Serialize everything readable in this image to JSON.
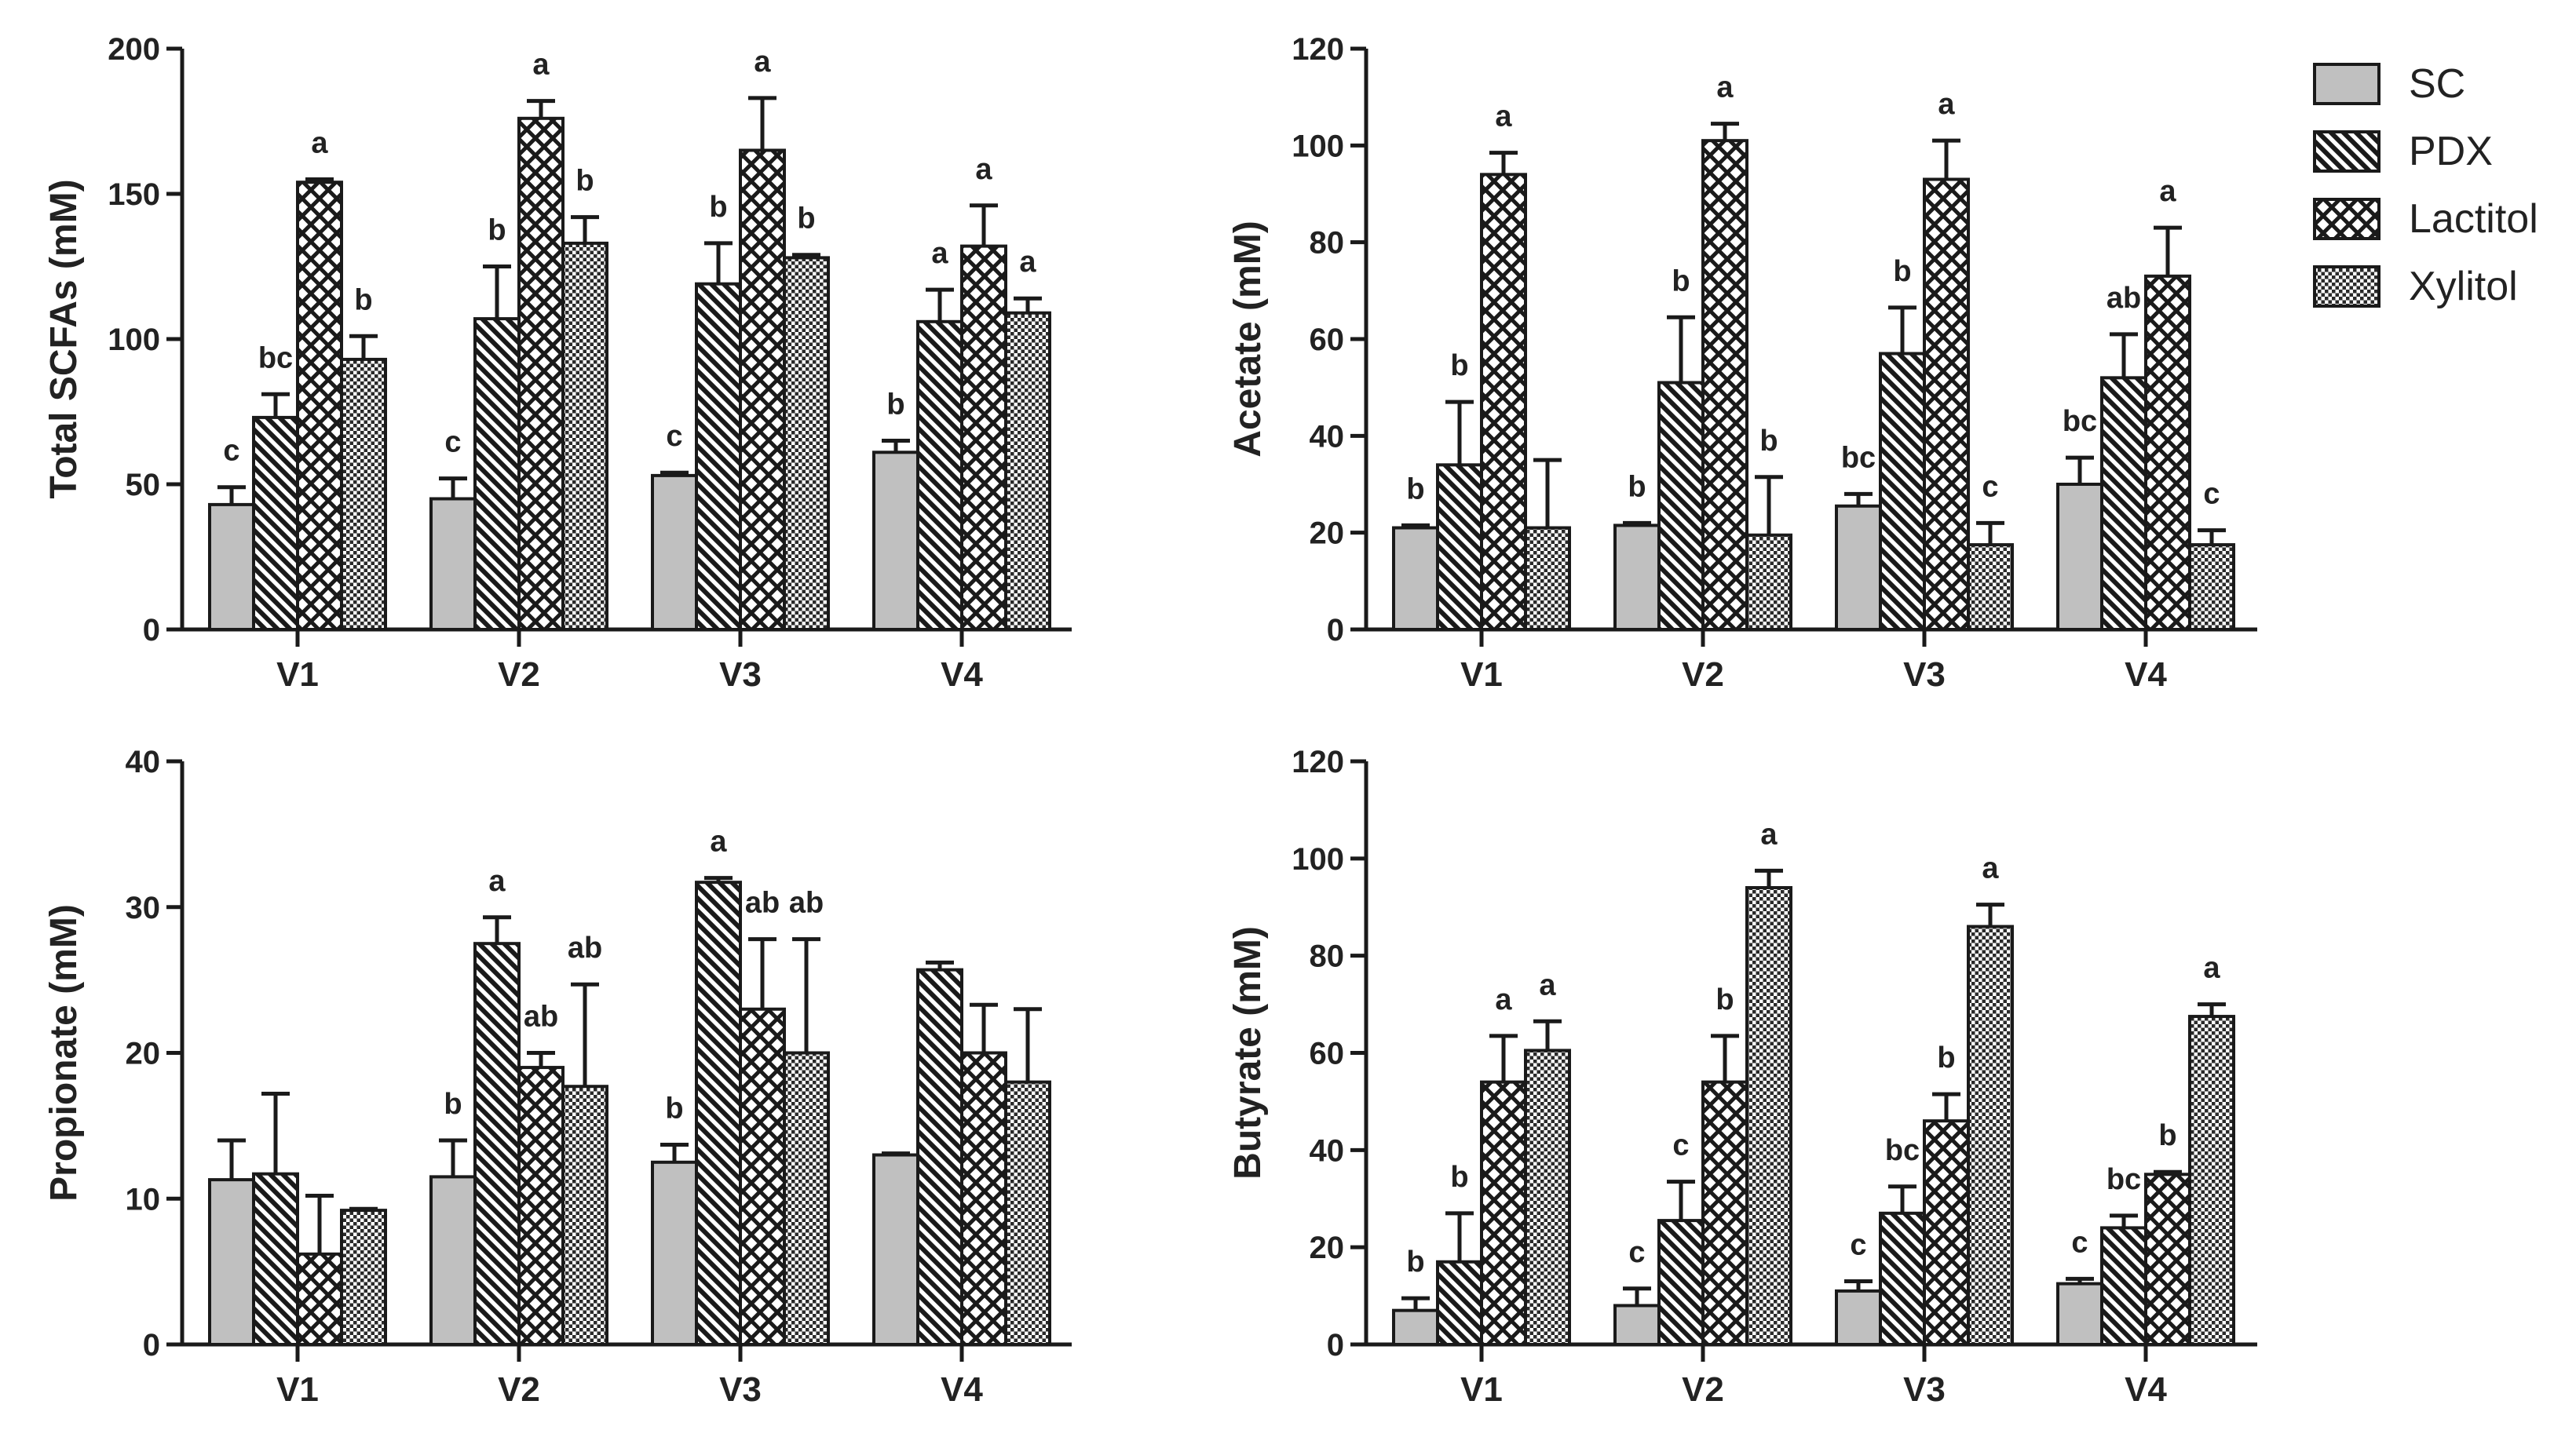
{
  "legend": {
    "position": "top-right",
    "items": [
      {
        "name": "SC",
        "fill": "solid"
      },
      {
        "name": "PDX",
        "fill": "diagonal"
      },
      {
        "name": "Lactitol",
        "fill": "crosshatch"
      },
      {
        "name": "Xylitol",
        "fill": "dots"
      }
    ]
  },
  "colors": {
    "sc_fill": "#c0c0c0",
    "stroke": "#1a1a1a"
  },
  "chart_data": [
    {
      "type": "bar",
      "ylabel": "Total SCFAs (mM)",
      "ylim": [
        0,
        200
      ],
      "yticks": [
        0,
        50,
        100,
        150,
        200
      ],
      "categories": [
        "V1",
        "V2",
        "V3",
        "V4"
      ],
      "series": [
        {
          "name": "SC",
          "values": [
            43,
            45,
            53,
            61
          ],
          "errors": [
            6,
            7,
            1,
            4
          ],
          "letters": [
            "c",
            "c",
            "c",
            "b"
          ]
        },
        {
          "name": "PDX",
          "values": [
            73,
            107,
            119,
            106
          ],
          "errors": [
            8,
            18,
            14,
            11
          ],
          "letters": [
            "bc",
            "b",
            "b",
            "a"
          ]
        },
        {
          "name": "Lactitol",
          "values": [
            154,
            176,
            165,
            132
          ],
          "errors": [
            1,
            6,
            18,
            14
          ],
          "letters": [
            "a",
            "a",
            "a",
            "a"
          ]
        },
        {
          "name": "Xylitol",
          "values": [
            93,
            133,
            128,
            109
          ],
          "errors": [
            8,
            9,
            1,
            5
          ],
          "letters": [
            "b",
            "b",
            "b",
            "a"
          ]
        }
      ]
    },
    {
      "type": "bar",
      "ylabel": "Acetate (mM)",
      "ylim": [
        0,
        120
      ],
      "yticks": [
        0,
        20,
        40,
        60,
        80,
        100,
        120
      ],
      "categories": [
        "V1",
        "V2",
        "V3",
        "V4"
      ],
      "series": [
        {
          "name": "SC",
          "values": [
            21,
            21.5,
            25.5,
            30
          ],
          "errors": [
            0.5,
            0.5,
            2.5,
            5.5
          ],
          "letters": [
            "b",
            "b",
            "bc",
            "bc"
          ]
        },
        {
          "name": "PDX",
          "values": [
            34,
            51,
            57,
            52
          ],
          "errors": [
            13,
            13.5,
            9.5,
            9
          ],
          "letters": [
            "b",
            "b",
            "b",
            "ab"
          ]
        },
        {
          "name": "Lactitol",
          "values": [
            94,
            101,
            93,
            73
          ],
          "errors": [
            4.5,
            3.5,
            8,
            10
          ],
          "letters": [
            "a",
            "a",
            "a",
            "a"
          ]
        },
        {
          "name": "Xylitol",
          "values": [
            21,
            19.5,
            17.5,
            17.5
          ],
          "errors": [
            14,
            12,
            4.5,
            3
          ],
          "letters": [
            "",
            "b",
            "c",
            "c"
          ]
        }
      ]
    },
    {
      "type": "bar",
      "ylabel": "Propionate (mM)",
      "ylim": [
        0,
        40
      ],
      "yticks": [
        0,
        10,
        20,
        30,
        40
      ],
      "categories": [
        "V1",
        "V2",
        "V3",
        "V4"
      ],
      "series": [
        {
          "name": "SC",
          "values": [
            11.3,
            11.5,
            12.5,
            13
          ],
          "errors": [
            2.7,
            2.5,
            1.2,
            0.1
          ],
          "letters": [
            "",
            "b",
            "b",
            ""
          ]
        },
        {
          "name": "PDX",
          "values": [
            11.7,
            27.5,
            31.7,
            25.7
          ],
          "errors": [
            5.5,
            1.8,
            0.3,
            0.5
          ],
          "letters": [
            "",
            "a",
            "a",
            ""
          ]
        },
        {
          "name": "Lactitol",
          "values": [
            6.2,
            19,
            23,
            20
          ],
          "errors": [
            4,
            1,
            4.8,
            3.3
          ],
          "letters": [
            "",
            "ab",
            "ab",
            ""
          ]
        },
        {
          "name": "Xylitol",
          "values": [
            9.2,
            17.7,
            20,
            18
          ],
          "errors": [
            0.1,
            7,
            7.8,
            5
          ],
          "letters": [
            "",
            "ab",
            "ab",
            ""
          ]
        }
      ]
    },
    {
      "type": "bar",
      "ylabel": "Butyrate (mM)",
      "ylim": [
        0,
        120
      ],
      "yticks": [
        0,
        20,
        40,
        60,
        80,
        100,
        120
      ],
      "categories": [
        "V1",
        "V2",
        "V3",
        "V4"
      ],
      "series": [
        {
          "name": "SC",
          "values": [
            7,
            8,
            11,
            12.5
          ],
          "errors": [
            2.5,
            3.5,
            2,
            1
          ],
          "letters": [
            "b",
            "c",
            "c",
            "c"
          ]
        },
        {
          "name": "PDX",
          "values": [
            17,
            25.5,
            27,
            24
          ],
          "errors": [
            10,
            8,
            5.5,
            2.5
          ],
          "letters": [
            "b",
            "c",
            "bc",
            "bc"
          ]
        },
        {
          "name": "Lactitol",
          "values": [
            54,
            54,
            46,
            35
          ],
          "errors": [
            9.5,
            9.5,
            5.5,
            0.5
          ],
          "letters": [
            "a",
            "b",
            "b",
            "b"
          ]
        },
        {
          "name": "Xylitol",
          "values": [
            60.5,
            94,
            86,
            67.5
          ],
          "errors": [
            6,
            3.5,
            4.5,
            2.5
          ],
          "letters": [
            "a",
            "a",
            "a",
            "a"
          ]
        }
      ]
    }
  ]
}
